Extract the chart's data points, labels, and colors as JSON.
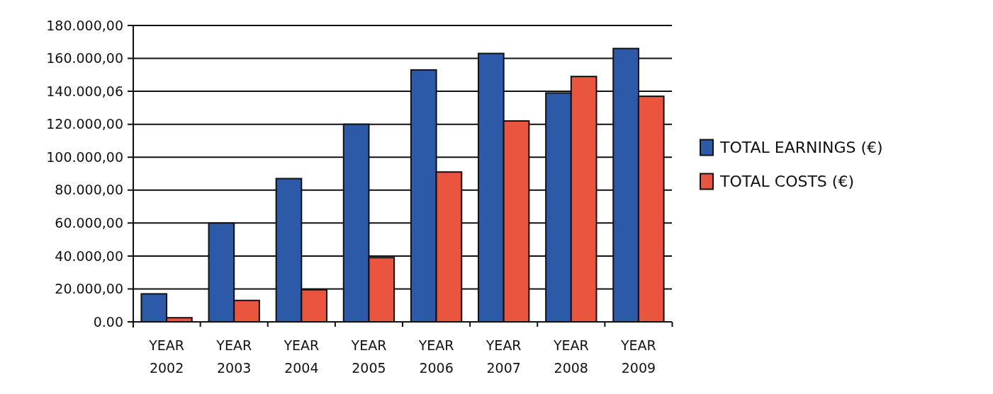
{
  "chart_data": {
    "type": "bar",
    "categories": [
      "YEAR 2002",
      "YEAR 2003",
      "YEAR 2004",
      "YEAR 2005",
      "YEAR 2006",
      "YEAR 2007",
      "YEAR 2008",
      "YEAR 2009"
    ],
    "series": [
      {
        "name": "TOTAL EARNINGS (€)",
        "color": "#2c5aa8",
        "values": [
          17000,
          60000,
          87000,
          120000,
          153000,
          163000,
          139000,
          166000
        ]
      },
      {
        "name": "TOTAL COSTS (€)",
        "color": "#e9553f",
        "values": [
          2500,
          13000,
          19500,
          39000,
          91000,
          122000,
          149000,
          137000
        ]
      }
    ],
    "ylim": [
      0,
      180000
    ],
    "yticks": [
      {
        "value": 0,
        "label": "0.00"
      },
      {
        "value": 20000,
        "label": "20.000,00"
      },
      {
        "value": 40000,
        "label": "40.000,00"
      },
      {
        "value": 60000,
        "label": "60.000,00"
      },
      {
        "value": 80000,
        "label": "80.000,00"
      },
      {
        "value": 100000,
        "label": "100.000,00"
      },
      {
        "value": 120000,
        "label": "120.000,00"
      },
      {
        "value": 140000.06,
        "label": "140.000,06"
      },
      {
        "value": 160000,
        "label": "160.000,00"
      },
      {
        "value": 180000,
        "label": "180.000,00"
      }
    ],
    "grid": "y",
    "legend": "right"
  }
}
